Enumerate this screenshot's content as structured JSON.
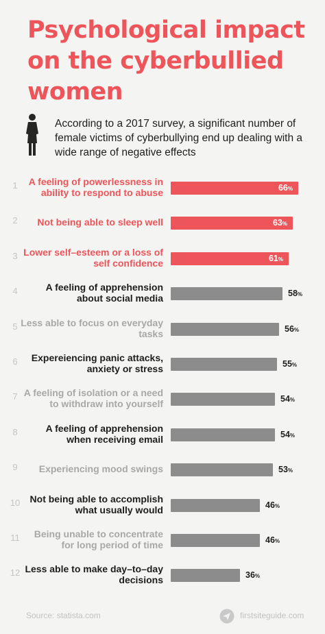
{
  "title": "Psychological impact on the cyberbullied women",
  "intro": "According to a 2017 survey, a significant number of female victims of cyberbullying end up dealing with a wide range of negative effects",
  "colors": {
    "title": "#ee555a",
    "highlight_bar": "#ee555a",
    "normal_bar": "#8c8c8c",
    "label_dark": "#1d1d1d",
    "label_light": "#a8a8a8"
  },
  "chart_data": {
    "type": "bar",
    "orientation": "horizontal",
    "unit": "%",
    "xlim": [
      0,
      66
    ],
    "items": [
      {
        "rank": "1",
        "label": "A feeling of powerlessness in ability to respond to abuse",
        "value": 66,
        "style": "highlight"
      },
      {
        "rank": "2",
        "label": "Not being able to sleep well",
        "value": 63,
        "style": "highlight"
      },
      {
        "rank": "3",
        "label": "Lower self–esteem or a loss of self confidence",
        "value": 61,
        "style": "highlight"
      },
      {
        "rank": "4",
        "label": "A feeling of apprehension about social media",
        "value": 58,
        "style": "dark"
      },
      {
        "rank": "5",
        "label": "Less able to focus on everyday tasks",
        "value": 56,
        "style": "light"
      },
      {
        "rank": "6",
        "label": "Expereiencing panic attacks, anxiety or stress",
        "value": 55,
        "style": "dark"
      },
      {
        "rank": "7",
        "label": "A feeling of isolation or a need to withdraw into yourself",
        "value": 54,
        "style": "light"
      },
      {
        "rank": "8",
        "label": "A feeling of apprehension when receiving email",
        "value": 54,
        "style": "dark"
      },
      {
        "rank": "9",
        "label": "Experiencing mood swings",
        "value": 53,
        "style": "light"
      },
      {
        "rank": "10",
        "label": "Not being able to accomplish what usually would",
        "value": 46,
        "style": "dark"
      },
      {
        "rank": "11",
        "label": "Being unable to concentrate for long period of time",
        "value": 46,
        "style": "light"
      },
      {
        "rank": "12",
        "label": "Less able to make day–to–day decisions",
        "value": 36,
        "style": "dark"
      }
    ]
  },
  "footer": {
    "source": "Source: statista.com",
    "brand": "firstsiteguide.com",
    "brand_icon": "paper-plane-icon"
  }
}
